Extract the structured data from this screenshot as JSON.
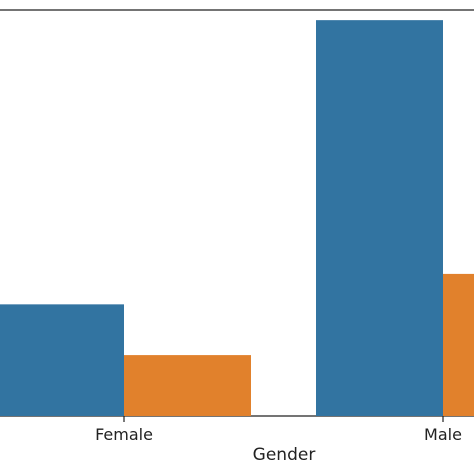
{
  "chart_data": {
    "type": "bar",
    "xlabel": "Gender",
    "ylabel": "",
    "categories": [
      "Female",
      "Male"
    ],
    "series": [
      {
        "values": [
          110,
          390
        ],
        "color": "#3274a1"
      },
      {
        "values": [
          60,
          140
        ],
        "color": "#e1812c"
      }
    ],
    "ylim": [
      0,
      400
    ],
    "grid": false,
    "legend": "none"
  }
}
